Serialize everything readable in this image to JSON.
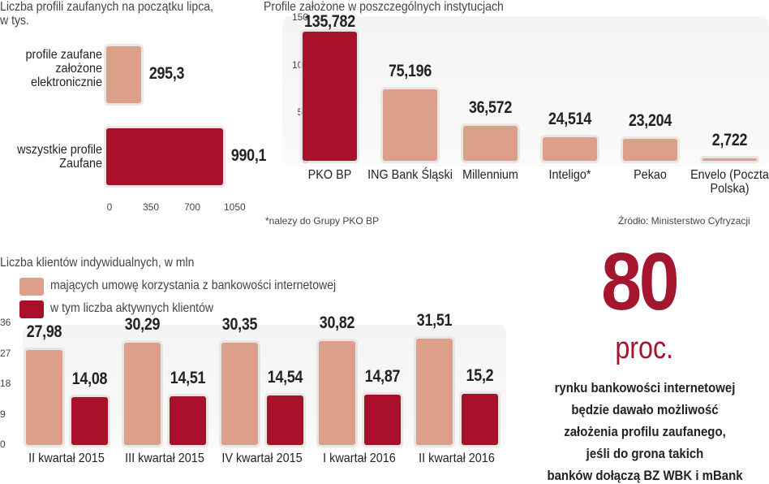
{
  "colors": {
    "light": "#dba08a",
    "dark": "#a8102c"
  },
  "chart_data": [
    {
      "type": "bar",
      "orientation": "horizontal",
      "title": "Liczba profili zaufanych na początku lipca, w tys.",
      "categories": [
        "profile zaufane założone elektronicznie",
        "wszystkie profile Zaufane"
      ],
      "values": [
        295.3,
        990.1
      ],
      "value_labels": [
        "295,3",
        "990,1"
      ],
      "xlim": [
        0,
        1050
      ],
      "ticks": [
        "0",
        "350",
        "700",
        "1050"
      ]
    },
    {
      "type": "bar",
      "title": "Profile założone w poszczególnych instytucjach",
      "categories": [
        "PKO BP",
        "ING Bank Śląski",
        "Millennium",
        "Inteligo*",
        "Pekao",
        "Envelo (Poczta Polska)"
      ],
      "values": [
        135.782,
        75.196,
        36.572,
        24.514,
        23.204,
        2.722
      ],
      "value_labels": [
        "135,782",
        "75,196",
        "36,572",
        "24,514",
        "23,204",
        "2,722"
      ],
      "ylim": [
        0,
        150
      ],
      "ticks": [
        "0",
        "50",
        "100",
        "150"
      ],
      "footnote": "*nalezy do Grupy PKO BP",
      "source": "Źródło: Ministerstwo Cyfryzacji"
    },
    {
      "type": "bar",
      "title": "Liczba klientów indywidualnych, w mln",
      "categories": [
        "II kwartał 2015",
        "III kwartał 2015",
        "IV kwartał 2015",
        "I kwartał 2016",
        "II kwartał 2016"
      ],
      "series": [
        {
          "name": "mających umowę korzystania z bankowości internetowej",
          "values": [
            27.98,
            30.29,
            30.35,
            30.82,
            31.51
          ],
          "labels": [
            "27,98",
            "30,29",
            "30,35",
            "30,82",
            "31,51"
          ]
        },
        {
          "name": "w tym liczba aktywnych klientów",
          "values": [
            14.08,
            14.51,
            14.54,
            14.87,
            15.2
          ],
          "labels": [
            "14,08",
            "14,51",
            "14,54",
            "14,87",
            "15,2"
          ]
        }
      ],
      "ylim": [
        0,
        36
      ],
      "ticks": [
        "0",
        "9",
        "18",
        "27",
        "36"
      ]
    }
  ],
  "callout": {
    "number": "80",
    "unit": "proc.",
    "lines": [
      "rynku bankowości internetowej",
      "będzie dawało możliwość",
      "założenia profilu zaufanego,",
      "jeśli do grona takich",
      "banków dołączą BZ WBK i mBank"
    ]
  }
}
